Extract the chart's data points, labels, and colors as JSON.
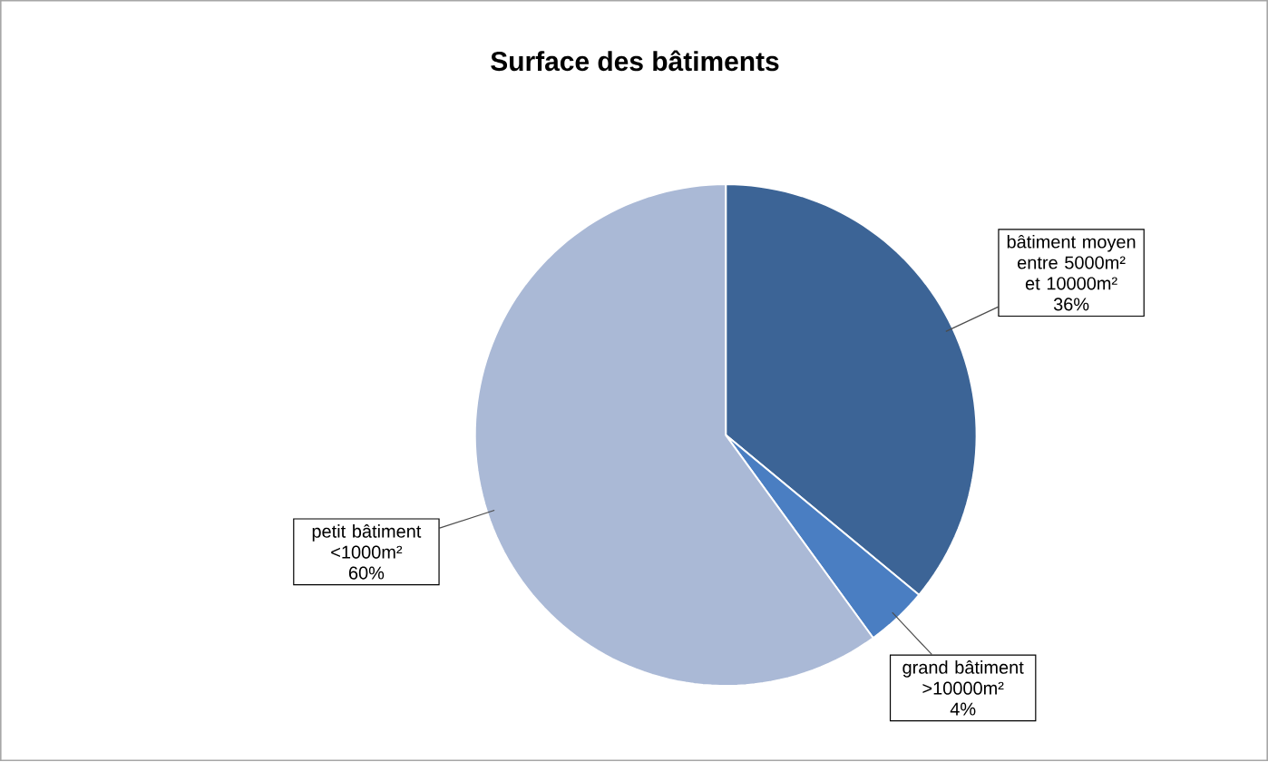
{
  "chart_data": {
    "type": "pie",
    "title": "Surface des bâtiments",
    "categories": [
      "bâtiment moyen entre 5000m² et 10000m²",
      "grand bâtiment >10000m²",
      "petit bâtiment <1000m²"
    ],
    "values": [
      36,
      4,
      60
    ],
    "value_labels": [
      "36%",
      "4%",
      "60%"
    ],
    "colors": [
      "#3c6496",
      "#4a7ec2",
      "#aab9d6"
    ]
  }
}
